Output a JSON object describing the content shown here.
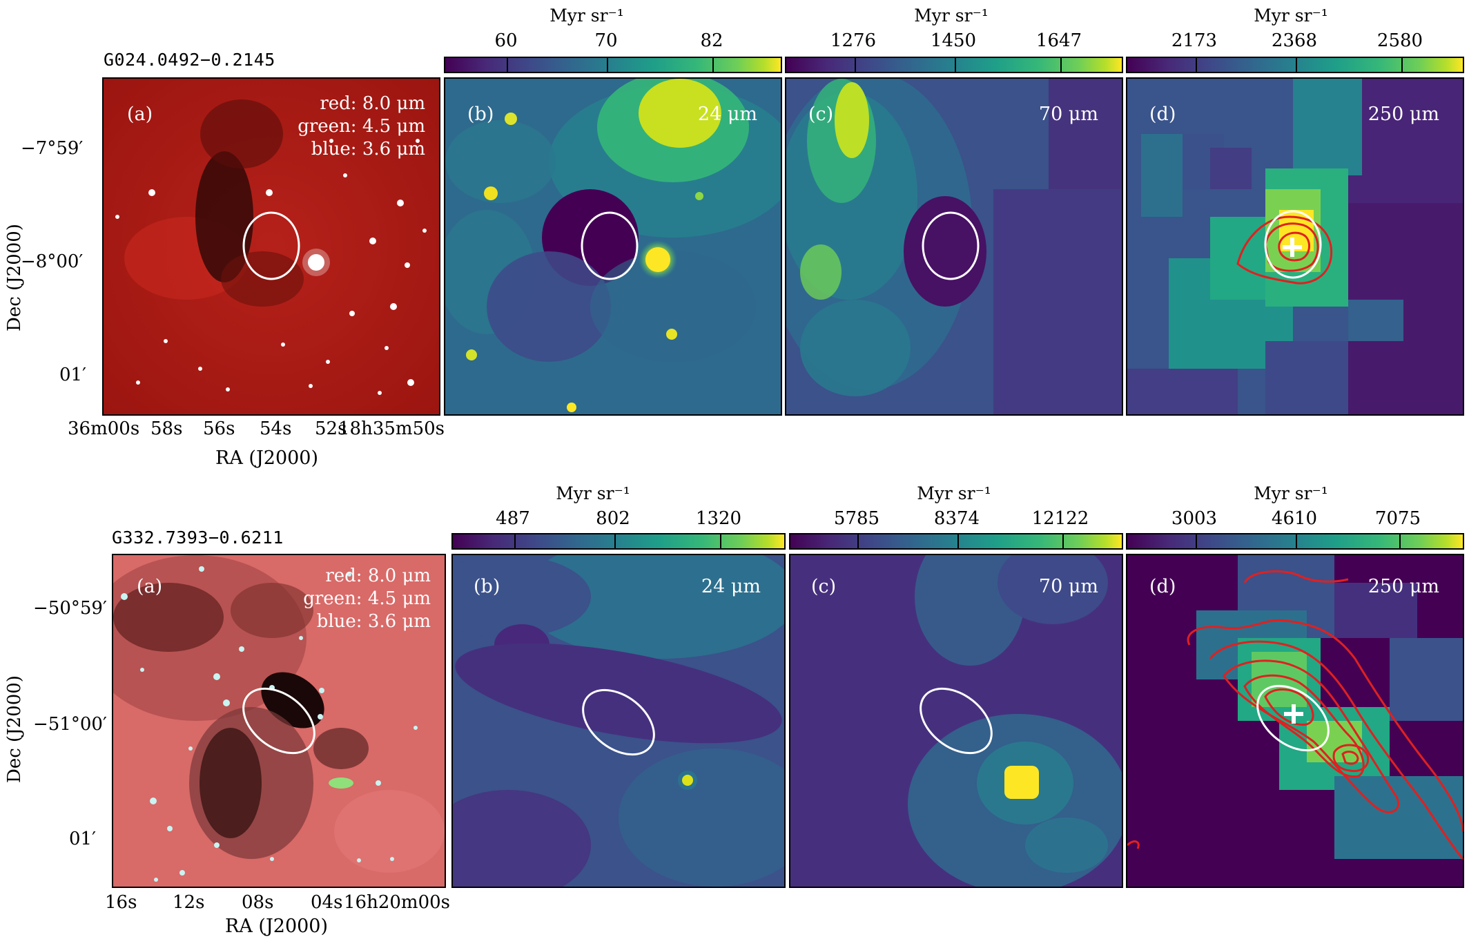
{
  "rows": [
    {
      "source": "G024.0492−0.2145",
      "rgb_legend": {
        "red": "red: 8.0 μm",
        "green": "green: 4.5 μm",
        "blue": "blue: 3.6 μm"
      },
      "dec_ticks": [
        "−7°59′",
        "−8°00′",
        "01′"
      ],
      "ra_ticks": [
        "36m00s",
        "58s",
        "56s",
        "54s",
        "52s",
        "18h35m50s"
      ],
      "colorbars": [
        {
          "unit": "Myr sr⁻¹",
          "ticks": [
            "60",
            "70",
            "82"
          ]
        },
        {
          "unit": "Myr sr⁻¹",
          "ticks": [
            "1276",
            "1450",
            "1647"
          ]
        },
        {
          "unit": "Myr sr⁻¹",
          "ticks": [
            "2173",
            "2368",
            "2580"
          ]
        }
      ],
      "panels": [
        {
          "label": "(a)",
          "wavelength": ""
        },
        {
          "label": "(b)",
          "wavelength": "24 μm"
        },
        {
          "label": "(c)",
          "wavelength": "70 μm"
        },
        {
          "label": "(d)",
          "wavelength": "250 μm"
        }
      ]
    },
    {
      "source": "G332.7393−0.6211",
      "rgb_legend": {
        "red": "red: 8.0 μm",
        "green": "green: 4.5 μm",
        "blue": "blue: 3.6 μm"
      },
      "dec_ticks": [
        "−50°59′",
        "−51°00′",
        "01′"
      ],
      "ra_ticks": [
        "16s",
        "12s",
        "08s",
        "04s",
        "16h20m00s"
      ],
      "colorbars": [
        {
          "unit": "Myr sr⁻¹",
          "ticks": [
            "487",
            "802",
            "1320"
          ]
        },
        {
          "unit": "Myr sr⁻¹",
          "ticks": [
            "5785",
            "8374",
            "12122"
          ]
        },
        {
          "unit": "Myr sr⁻¹",
          "ticks": [
            "3003",
            "4610",
            "7075"
          ]
        }
      ],
      "panels": [
        {
          "label": "(a)",
          "wavelength": ""
        },
        {
          "label": "(b)",
          "wavelength": "24 μm"
        },
        {
          "label": "(c)",
          "wavelength": "70 μm"
        },
        {
          "label": "(d)",
          "wavelength": "250 μm"
        }
      ]
    }
  ],
  "axis_labels": {
    "dec": "Dec (J2000)",
    "ra": "RA (J2000)"
  },
  "colors": {
    "ellipse": "#ffffff",
    "contour": "#e02020",
    "rgb_bg": "#b81c14",
    "rgb_bg2": "#e07070"
  }
}
